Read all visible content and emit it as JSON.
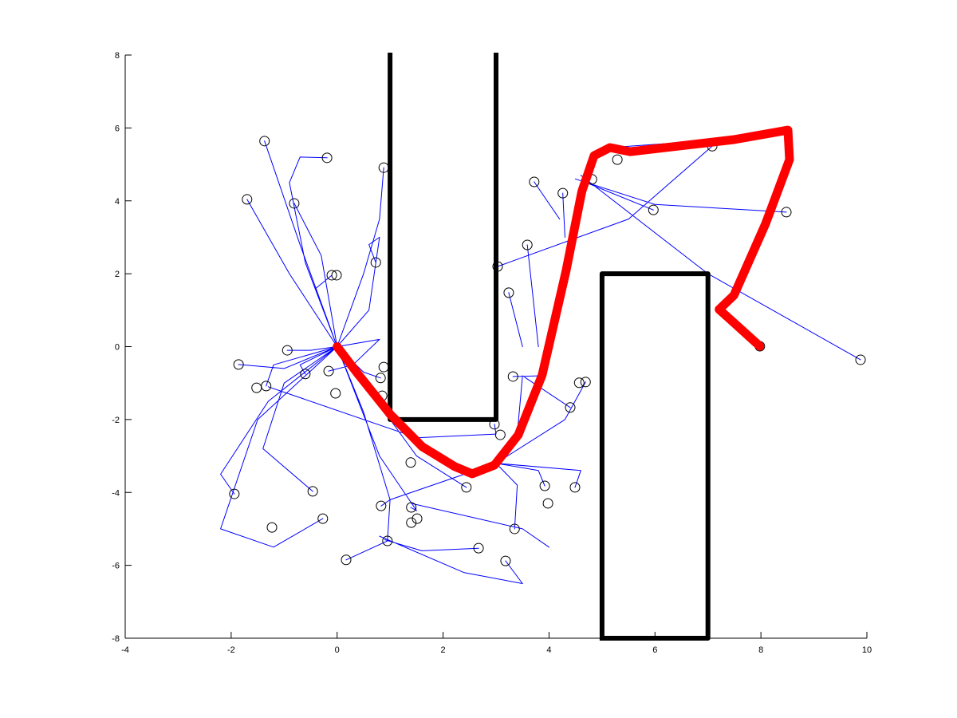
{
  "chart_data": {
    "type": "line",
    "xlim": [
      -4,
      10
    ],
    "ylim": [
      -8,
      8
    ],
    "xticks": [
      -4,
      -2,
      0,
      2,
      4,
      6,
      8,
      10
    ],
    "yticks": [
      -8,
      -6,
      -4,
      -2,
      0,
      2,
      4,
      6,
      8
    ],
    "series": [
      {
        "color": "#0000ff",
        "width": 1,
        "x": [
          0,
          -0.7,
          -1.37,
          null,
          0,
          -0.9,
          -1.7,
          null,
          0,
          -0.3,
          -0.81,
          null,
          0,
          -0.6,
          -0.9,
          -0.7,
          -0.19,
          null,
          0,
          0.5,
          0.8,
          0.88,
          null,
          0,
          0.6,
          0.8,
          0.6,
          0.73,
          null,
          0,
          -0.4,
          -0.1,
          null,
          0,
          -0.5,
          -0.94,
          null,
          0,
          -1,
          -1.86,
          null,
          0,
          -0.7,
          -0.6,
          null,
          0,
          0.8,
          0.3,
          -0.16,
          null,
          0,
          -1.2,
          -1.34,
          null,
          0,
          0.5,
          0.82,
          null,
          0,
          -1.3,
          -2.2,
          -1.94,
          null,
          0,
          -1.0,
          -1.4,
          -0.46,
          null,
          0,
          -1.5,
          -2.2,
          -1.2,
          -0.27,
          null,
          0,
          0.5,
          1,
          0.95,
          null,
          0,
          0.8,
          1.5,
          1.39,
          null,
          0.95,
          0.17,
          null,
          0.9,
          1.6,
          2.67,
          null,
          0.8,
          2.4,
          3.5,
          3.18,
          null,
          3,
          2.2,
          1,
          0.83,
          null,
          3,
          3.4,
          3.35,
          null,
          3,
          3.8,
          3.92,
          null,
          3,
          4.6,
          4.49,
          null,
          3,
          4.3,
          4.69,
          null,
          3.4,
          3.5,
          4.4,
          null,
          3.8,
          3.32,
          null,
          3.5,
          3.24,
          null,
          3.03,
          5.5,
          7.08,
          null,
          4.5,
          6,
          8.48,
          null,
          4.6,
          7,
          9.88,
          null,
          4.7,
          5.97,
          null,
          4.3,
          4.26,
          null,
          3.8,
          3.59,
          null,
          4.2,
          3.72,
          null,
          -1.3,
          1.5,
          3,
          2.97,
          null,
          1.4,
          3.5,
          4,
          null,
          0,
          1.5,
          2.44,
          null,
          5.15,
          6.5,
          7.08
        ],
        "y": [
          0,
          2.8,
          5.64,
          null,
          0,
          2,
          4.04,
          null,
          0,
          2.5,
          3.93,
          null,
          0,
          2.3,
          4.5,
          5.2,
          5.18,
          null,
          0,
          2,
          3.5,
          4.91,
          null,
          0,
          1,
          3,
          2.8,
          2.31,
          null,
          0,
          1.6,
          1.96,
          null,
          0,
          -0.1,
          -0.1,
          null,
          0,
          -0.6,
          -0.49,
          null,
          0,
          -0.5,
          -0.75,
          null,
          0,
          0.2,
          -0.5,
          -0.67,
          null,
          0,
          -0.5,
          -1.08,
          null,
          0,
          -0.7,
          -0.86,
          null,
          0,
          -1.5,
          -3.5,
          -4.04,
          null,
          0,
          -1.0,
          -2.8,
          -3.97,
          null,
          0,
          -2,
          -5,
          -5.5,
          -4.72,
          null,
          0,
          -1.8,
          -4.2,
          -5.33,
          null,
          0,
          -3,
          -4.5,
          -4.41,
          null,
          -5.33,
          -5.85,
          null,
          -5.3,
          -5.6,
          -5.53,
          null,
          -5.2,
          -6.2,
          -6.5,
          -5.88,
          null,
          -3.2,
          -3.6,
          -4.2,
          -4.37,
          null,
          -3.2,
          -3.8,
          -5.0,
          null,
          -3.2,
          -3.4,
          -3.82,
          null,
          -3.2,
          -3.4,
          -3.86,
          null,
          -3.2,
          -2,
          -0.97,
          null,
          -2.4,
          -0.8,
          -1.67,
          null,
          -0.8,
          -0.82,
          null,
          0,
          1.48,
          null,
          2.2,
          3.5,
          5.5,
          null,
          4.6,
          3.9,
          3.69,
          null,
          4.7,
          2,
          -0.36,
          null,
          4.5,
          3.75,
          null,
          3,
          4.21,
          null,
          0,
          2.79,
          null,
          3.5,
          4.52,
          null,
          -1.1,
          -2.5,
          -2.4,
          -2.13,
          null,
          -4.3,
          -5,
          -5.5,
          null,
          0,
          -3,
          -3.86,
          null,
          5.46,
          5.6,
          5.5
        ]
      },
      {
        "color": "#000000",
        "marker": "circle",
        "x": [
          -1.37,
          -0.19,
          0.88,
          -1.7,
          -0.81,
          0.73,
          -0.1,
          -0.01,
          -0.94,
          -1.86,
          -0.6,
          -0.16,
          -1.34,
          -1.52,
          -0.03,
          0.88,
          0.82,
          0.85,
          -1.94,
          -0.46,
          -0.27,
          -1.23,
          0.17,
          0.83,
          1.39,
          1.4,
          1.4,
          1.51,
          0.95,
          2.44,
          2.67,
          3.18,
          3.35,
          2.97,
          3.08,
          3.32,
          3.24,
          3.03,
          3.59,
          3.72,
          4.26,
          4.81,
          5.29,
          5.97,
          7.08,
          8.48,
          9.88,
          7.98,
          4.69,
          4.57,
          4.4,
          3.92,
          4.49,
          3.98
        ],
        "y": [
          5.64,
          5.18,
          4.91,
          4.04,
          3.93,
          2.31,
          1.96,
          1.96,
          -0.1,
          -0.49,
          -0.75,
          -0.67,
          -1.08,
          -1.13,
          -1.28,
          -0.56,
          -0.86,
          -1.35,
          -4.04,
          -3.97,
          -4.72,
          -4.96,
          -5.85,
          -4.37,
          -3.18,
          -4.41,
          -4.83,
          -4.72,
          -5.33,
          -3.86,
          -5.53,
          -5.88,
          -5.0,
          -2.13,
          -2.42,
          -0.82,
          1.48,
          2.2,
          2.79,
          4.52,
          4.21,
          4.59,
          5.13,
          3.75,
          5.5,
          3.69,
          -0.36,
          0.01,
          -0.97,
          -0.99,
          -1.67,
          -3.82,
          -3.86,
          -4.3
        ]
      },
      {
        "color": "#000000",
        "width": 6,
        "x": [
          1,
          1,
          3,
          3,
          null,
          5,
          5,
          7,
          7,
          5
        ],
        "y": [
          8,
          -2,
          -2,
          8,
          null,
          -8,
          2,
          2,
          -8,
          -8
        ]
      },
      {
        "color": "#ff0000",
        "width": 11,
        "x": [
          0,
          0.41,
          1.01,
          1.61,
          2.22,
          2.55,
          2.97,
          3.42,
          3.87,
          4.32,
          4.62,
          4.85,
          5.15,
          5.53,
          6.43,
          7.49,
          8.51,
          8.54,
          8.09,
          7.49,
          7.21,
          7.41,
          7.98
        ],
        "y": [
          0,
          -0.78,
          -1.87,
          -2.75,
          -3.29,
          -3.49,
          -3.25,
          -2.42,
          -0.78,
          2.07,
          4.26,
          5.24,
          5.46,
          5.35,
          5.5,
          5.68,
          5.94,
          5.13,
          3.38,
          1.41,
          1.02,
          0.76,
          0.01
        ]
      }
    ]
  }
}
